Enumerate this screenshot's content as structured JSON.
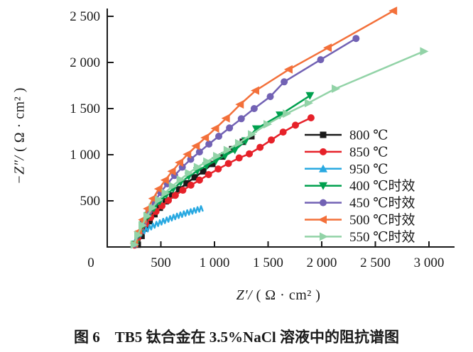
{
  "figure": {
    "caption": "图 6　TB5 钛合金在 3.5%NaCl 溶液中的阻抗谱图"
  },
  "chart_data": {
    "type": "line",
    "title": "",
    "xlabel_italic": "Z′/",
    "xlabel_unit": " ( Ω · cm² )",
    "ylabel_italic": "−Z″/",
    "ylabel_unit": " ( Ω · cm² )",
    "xlabel": "Z′/ ( Ω · cm² )",
    "ylabel": "−Z″/ ( Ω · cm² )",
    "xlim": [
      0,
      3240
    ],
    "ylim": [
      0,
      2585
    ],
    "grid": false,
    "legend_position": "inside-right-middle",
    "axis_color": "#1a1a1a",
    "xticks": {
      "values": [
        0,
        500,
        1000,
        1500,
        2000,
        2500,
        3000
      ],
      "labels": [
        "0",
        "500",
        "1 000",
        "1 500",
        "2 000",
        "2 500",
        "3 000"
      ]
    },
    "yticks": {
      "values": [
        500,
        1000,
        1500,
        2000,
        2500
      ],
      "labels": [
        "500",
        "1 000",
        "1 500",
        "2 000",
        "2 500"
      ]
    },
    "series": [
      {
        "name": "800C",
        "label": "800 ℃",
        "color": "#1a1a1a",
        "marker": "square",
        "noisy": false,
        "points": [
          [
            285,
            25
          ],
          [
            320,
            120
          ],
          [
            355,
            200
          ],
          [
            395,
            280
          ],
          [
            440,
            355
          ],
          [
            490,
            425
          ],
          [
            545,
            495
          ],
          [
            605,
            560
          ],
          [
            670,
            625
          ],
          [
            740,
            690
          ],
          [
            815,
            755
          ],
          [
            895,
            820
          ],
          [
            980,
            900
          ],
          [
            1070,
            980
          ],
          [
            1165,
            1060
          ],
          [
            1265,
            1140
          ],
          [
            1344,
            1200
          ]
        ]
      },
      {
        "name": "850C",
        "label": "850 ℃",
        "color": "#e62129",
        "marker": "circle",
        "noisy": false,
        "points": [
          [
            255,
            20
          ],
          [
            285,
            100
          ],
          [
            320,
            175
          ],
          [
            360,
            250
          ],
          [
            405,
            320
          ],
          [
            455,
            385
          ],
          [
            510,
            445
          ],
          [
            570,
            505
          ],
          [
            635,
            560
          ],
          [
            705,
            615
          ],
          [
            780,
            670
          ],
          [
            860,
            725
          ],
          [
            945,
            785
          ],
          [
            1035,
            845
          ],
          [
            1130,
            905
          ],
          [
            1230,
            965
          ],
          [
            1325,
            1010
          ],
          [
            1425,
            1080
          ],
          [
            1530,
            1160
          ],
          [
            1640,
            1245
          ],
          [
            1755,
            1320
          ],
          [
            1900,
            1400
          ]
        ]
      },
      {
        "name": "950C",
        "label": "950 ℃",
        "color": "#29a9e1",
        "marker": "triangle-up",
        "noisy": true,
        "points": [
          [
            240,
            5
          ],
          [
            250,
            35
          ],
          [
            266,
            119
          ],
          [
            282,
            85
          ],
          [
            298,
            158
          ],
          [
            314,
            118
          ],
          [
            330,
            188
          ],
          [
            346,
            145
          ],
          [
            362,
            213
          ],
          [
            378,
            168
          ],
          [
            394,
            235
          ],
          [
            410,
            189
          ],
          [
            426,
            255
          ],
          [
            442,
            208
          ],
          [
            458,
            273
          ],
          [
            474,
            226
          ],
          [
            490,
            290
          ],
          [
            506,
            242
          ],
          [
            522,
            306
          ],
          [
            538,
            258
          ],
          [
            554,
            321
          ],
          [
            570,
            272
          ],
          [
            586,
            335
          ],
          [
            602,
            286
          ],
          [
            618,
            349
          ],
          [
            634,
            300
          ],
          [
            650,
            362
          ],
          [
            666,
            313
          ],
          [
            682,
            375
          ],
          [
            698,
            325
          ],
          [
            714,
            387
          ],
          [
            730,
            337
          ],
          [
            746,
            399
          ],
          [
            762,
            349
          ],
          [
            778,
            410
          ],
          [
            794,
            360
          ],
          [
            810,
            421
          ],
          [
            826,
            371
          ],
          [
            842,
            432
          ],
          [
            858,
            381
          ],
          [
            874,
            443
          ],
          [
            890,
            392
          ]
        ]
      },
      {
        "name": "400C-aged",
        "label": "400 ℃时效",
        "color": "#00a04e",
        "marker": "triangle-down",
        "noisy": false,
        "points": [
          [
            265,
            30
          ],
          [
            300,
            140
          ],
          [
            340,
            245
          ],
          [
            385,
            340
          ],
          [
            435,
            420
          ],
          [
            490,
            495
          ],
          [
            550,
            565
          ],
          [
            615,
            630
          ],
          [
            685,
            700
          ],
          [
            760,
            765
          ],
          [
            840,
            825
          ],
          [
            925,
            880
          ],
          [
            1013,
            935
          ],
          [
            1100,
            990
          ],
          [
            1190,
            1050
          ],
          [
            1290,
            1150
          ],
          [
            1390,
            1280
          ],
          [
            1610,
            1430
          ],
          [
            1890,
            1640
          ]
        ]
      },
      {
        "name": "450C-aged",
        "label": "450 ℃时效",
        "color": "#7262b4",
        "marker": "circle",
        "noisy": false,
        "points": [
          [
            260,
            30
          ],
          [
            298,
            150
          ],
          [
            340,
            270
          ],
          [
            388,
            385
          ],
          [
            440,
            490
          ],
          [
            498,
            590
          ],
          [
            560,
            685
          ],
          [
            628,
            775
          ],
          [
            700,
            865
          ],
          [
            778,
            950
          ],
          [
            860,
            1030
          ],
          [
            948,
            1115
          ],
          [
            1040,
            1200
          ],
          [
            1140,
            1290
          ],
          [
            1250,
            1390
          ],
          [
            1370,
            1500
          ],
          [
            1520,
            1630
          ],
          [
            1650,
            1790
          ],
          [
            1990,
            2030
          ],
          [
            2320,
            2260
          ]
        ]
      },
      {
        "name": "500C-aged",
        "label": "500 ℃时效",
        "color": "#f3703a",
        "marker": "triangle-left",
        "noisy": false,
        "points": [
          [
            255,
            40
          ],
          [
            292,
            165
          ],
          [
            333,
            295
          ],
          [
            378,
            415
          ],
          [
            428,
            525
          ],
          [
            482,
            630
          ],
          [
            542,
            725
          ],
          [
            606,
            820
          ],
          [
            676,
            915
          ],
          [
            750,
            1005
          ],
          [
            830,
            1095
          ],
          [
            915,
            1185
          ],
          [
            1010,
            1285
          ],
          [
            1110,
            1395
          ],
          [
            1240,
            1545
          ],
          [
            1384,
            1695
          ],
          [
            1695,
            1925
          ],
          [
            2060,
            2160
          ],
          [
            2670,
            2560
          ]
        ]
      },
      {
        "name": "550C-aged",
        "label": "550 ℃时效",
        "color": "#92d3a7",
        "marker": "triangle-right",
        "noisy": false,
        "points": [
          [
            250,
            25
          ],
          [
            285,
            130
          ],
          [
            325,
            235
          ],
          [
            370,
            335
          ],
          [
            420,
            425
          ],
          [
            478,
            510
          ],
          [
            540,
            585
          ],
          [
            608,
            660
          ],
          [
            680,
            730
          ],
          [
            758,
            800
          ],
          [
            840,
            865
          ],
          [
            928,
            925
          ],
          [
            1020,
            985
          ],
          [
            1118,
            1050
          ],
          [
            1225,
            1125
          ],
          [
            1345,
            1220
          ],
          [
            1490,
            1330
          ],
          [
            1670,
            1445
          ],
          [
            1874,
            1560
          ],
          [
            2126,
            1715
          ],
          [
            2950,
            2120
          ]
        ]
      }
    ]
  }
}
